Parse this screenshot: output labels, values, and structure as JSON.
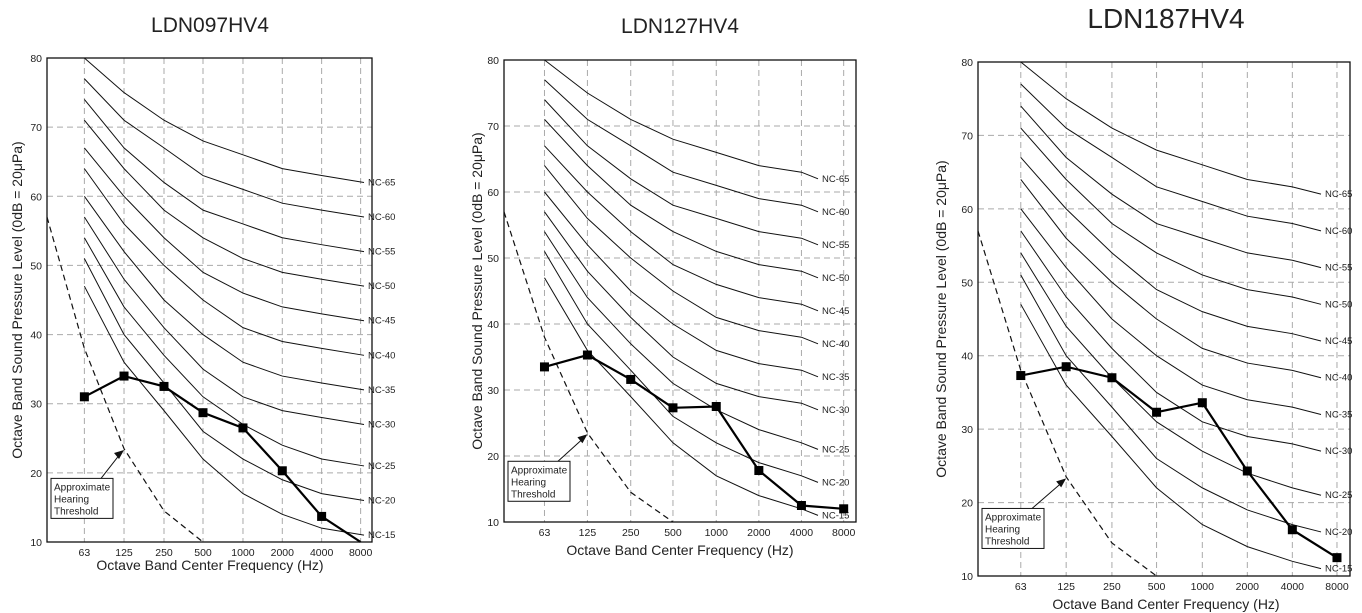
{
  "nc_labels": [
    "NC-65",
    "NC-60",
    "NC-55",
    "NC-50",
    "NC-45",
    "NC-40",
    "NC-35",
    "NC-30",
    "NC-25",
    "NC-20",
    "NC-15"
  ],
  "x_ticks": [
    "63",
    "125",
    "250",
    "500",
    "1000",
    "2000",
    "4000",
    "8000"
  ],
  "x_values": [
    63,
    125,
    250,
    500,
    1000,
    2000,
    4000,
    8000
  ],
  "nc_curves": [
    {
      "name": "NC-65",
      "values": [
        80,
        75,
        71,
        68,
        66,
        64,
        63,
        62
      ]
    },
    {
      "name": "NC-60",
      "values": [
        77,
        71,
        67,
        63,
        61,
        59,
        58,
        57
      ]
    },
    {
      "name": "NC-55",
      "values": [
        74,
        67,
        62,
        58,
        56,
        54,
        53,
        52
      ]
    },
    {
      "name": "NC-50",
      "values": [
        71,
        64,
        58,
        54,
        51,
        49,
        48,
        47
      ]
    },
    {
      "name": "NC-45",
      "values": [
        67,
        60,
        54,
        49,
        46,
        44,
        43,
        42
      ]
    },
    {
      "name": "NC-40",
      "values": [
        64,
        56,
        50,
        45,
        41,
        39,
        38,
        37
      ]
    },
    {
      "name": "NC-35",
      "values": [
        60,
        52,
        45,
        40,
        36,
        34,
        33,
        32
      ]
    },
    {
      "name": "NC-30",
      "values": [
        57,
        48,
        41,
        35,
        31,
        29,
        28,
        27
      ]
    },
    {
      "name": "NC-25",
      "values": [
        54,
        44,
        37,
        31,
        27,
        24,
        22,
        21
      ]
    },
    {
      "name": "NC-20",
      "values": [
        51,
        40,
        33,
        26,
        22,
        19,
        17,
        16
      ]
    },
    {
      "name": "NC-15",
      "values": [
        47,
        36,
        29,
        22,
        17,
        14,
        12,
        11
      ]
    }
  ],
  "threshold": {
    "label_lines": [
      "Approximate",
      "Hearing",
      "Threshold"
    ]
  },
  "charts": [
    {
      "title": "LDN097HV4",
      "ylabel": "Octave Band Sound Pressure Level (0dB = 20μPa)",
      "xlabel": "Octave Band Center Frequency (Hz)",
      "ylim": [
        10,
        80
      ],
      "y_ticks": [
        10,
        20,
        30,
        40,
        50,
        60,
        70,
        80
      ],
      "chart_data": {
        "type": "line",
        "title": "LDN097HV4",
        "x": [
          "63",
          "125",
          "250",
          "500",
          "1000",
          "2000",
          "4000",
          "8000"
        ],
        "series": [
          {
            "values": [
              31,
              34,
              32.5,
              28.7,
              26.5,
              20.3,
              13.7,
              9.5
            ]
          }
        ]
      }
    },
    {
      "title": "LDN127HV4",
      "ylabel": "Octave Band Sound Pressure Level (0dB = 20μPa)",
      "xlabel": "Octave Band Center Frequency (Hz)",
      "ylim": [
        10,
        80
      ],
      "y_ticks": [
        10,
        20,
        30,
        40,
        50,
        60,
        70,
        80
      ],
      "chart_data": {
        "type": "line",
        "title": "LDN127HV4",
        "x": [
          "63",
          "125",
          "250",
          "500",
          "1000",
          "2000",
          "4000",
          "8000"
        ],
        "series": [
          {
            "values": [
              33.5,
              35.3,
              31.6,
              27.3,
              27.5,
              17.8,
              12.5,
              12
            ]
          }
        ]
      }
    },
    {
      "title": "LDN187HV4",
      "ylabel": "Octave Band Sound Pressure Level (0dB = 20μPa)",
      "xlabel": "Octave Band Center Frequency (Hz)",
      "ylim": [
        10,
        80
      ],
      "y_ticks": [
        10,
        20,
        30,
        40,
        50,
        60,
        70,
        80
      ],
      "chart_data": {
        "type": "line",
        "title": "LDN187HV4",
        "x": [
          "63",
          "125",
          "250",
          "500",
          "1000",
          "2000",
          "4000",
          "8000"
        ],
        "series": [
          {
            "values": [
              37.3,
              38.5,
              37,
              32.3,
              33.6,
              24.3,
              16.3,
              12.5
            ]
          }
        ]
      }
    }
  ]
}
